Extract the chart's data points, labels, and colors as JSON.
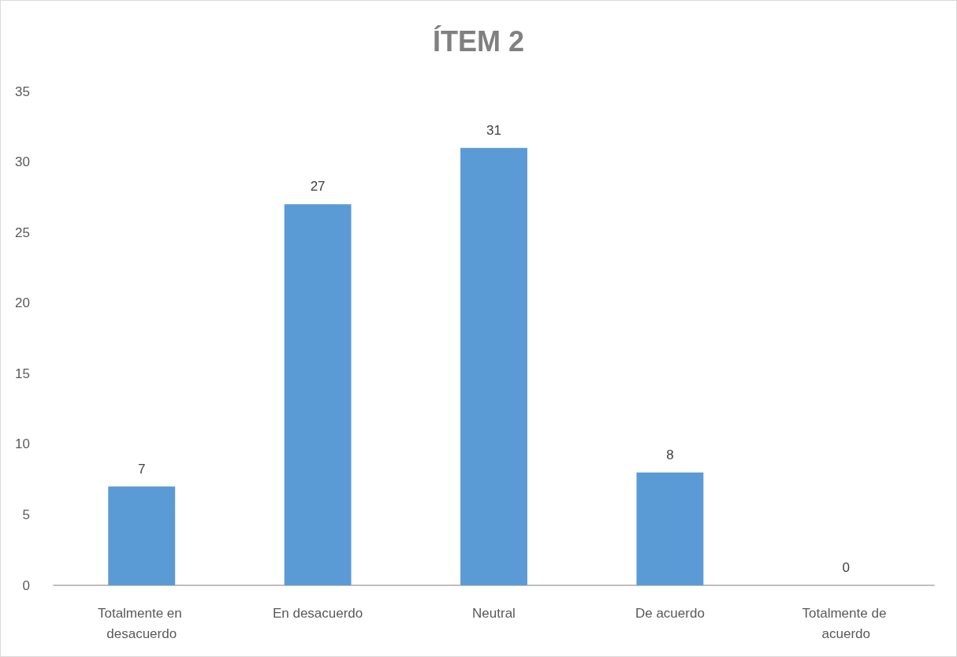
{
  "chart_data": {
    "type": "bar",
    "title": "ÍTEM 2",
    "categories": [
      "Totalmente en desacuerdo",
      "En desacuerdo",
      "Neutral",
      "De acuerdo",
      "Totalmente de acuerdo"
    ],
    "values": [
      7,
      27,
      31,
      8,
      0
    ],
    "color": "#5b9bd5",
    "ylim": [
      0,
      35
    ],
    "yticks": [
      0,
      5,
      10,
      15,
      20,
      25,
      30,
      35
    ],
    "grid": false,
    "data_labels": true
  }
}
